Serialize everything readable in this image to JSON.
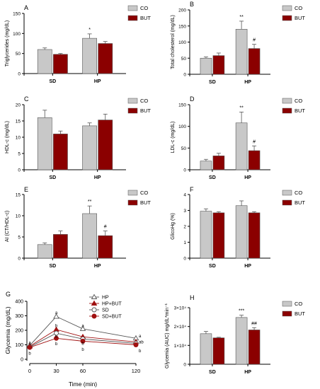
{
  "colors": {
    "co": "#c8c8c8",
    "but": "#8b0000",
    "axis": "#000000"
  },
  "legend_labels": {
    "co": "CO",
    "but": "BUT"
  },
  "chart_data": [
    {
      "panel": "A",
      "type": "bar",
      "ylabel": "Triglycerides (mg/dL)",
      "categories": [
        "SD",
        "HP"
      ],
      "ylim": [
        0,
        150
      ],
      "yticks": [
        0,
        50,
        100,
        150
      ],
      "series": [
        {
          "name": "CO",
          "values": [
            60,
            88
          ],
          "errors": [
            4,
            11
          ]
        },
        {
          "name": "BUT",
          "values": [
            48,
            75
          ],
          "errors": [
            2,
            5
          ]
        }
      ],
      "annotations": [
        {
          "category": "HP",
          "series": "CO",
          "text": "*"
        }
      ]
    },
    {
      "panel": "B",
      "type": "bar",
      "ylabel": "Total cholesterol (mg/dL)",
      "categories": [
        "SD",
        "HP"
      ],
      "ylim": [
        0,
        200
      ],
      "yticks": [
        0,
        50,
        100,
        150,
        200
      ],
      "series": [
        {
          "name": "CO",
          "values": [
            50,
            140
          ],
          "errors": [
            4,
            25
          ]
        },
        {
          "name": "BUT",
          "values": [
            58,
            80
          ],
          "errors": [
            8,
            13
          ]
        }
      ],
      "annotations": [
        {
          "category": "HP",
          "series": "CO",
          "text": "**"
        },
        {
          "category": "HP",
          "series": "BUT",
          "text": "#"
        }
      ]
    },
    {
      "panel": "C",
      "type": "bar",
      "ylabel": "HDL-c (mg/dL)",
      "categories": [
        "SD",
        "HP"
      ],
      "ylim": [
        0,
        20
      ],
      "yticks": [
        0,
        5,
        10,
        15,
        20
      ],
      "series": [
        {
          "name": "CO",
          "values": [
            16,
            13.5
          ],
          "errors": [
            2.3,
            0.9
          ]
        },
        {
          "name": "BUT",
          "values": [
            11,
            15.3
          ],
          "errors": [
            0.9,
            1.8
          ]
        }
      ],
      "annotations": []
    },
    {
      "panel": "D",
      "type": "bar",
      "ylabel": "LDL-c (mg/dL)",
      "categories": [
        "SD",
        "HP"
      ],
      "ylim": [
        0,
        150
      ],
      "yticks": [
        0,
        50,
        100,
        150
      ],
      "series": [
        {
          "name": "CO",
          "values": [
            20,
            108
          ],
          "errors": [
            4,
            25
          ]
        },
        {
          "name": "BUT",
          "values": [
            32,
            44
          ],
          "errors": [
            6,
            11
          ]
        }
      ],
      "annotations": [
        {
          "category": "HP",
          "series": "CO",
          "text": "**"
        },
        {
          "category": "HP",
          "series": "BUT",
          "text": "#"
        }
      ]
    },
    {
      "panel": "E",
      "type": "bar",
      "ylabel": "AI (CT/HDL-c)",
      "categories": [
        "SD",
        "HP"
      ],
      "ylim": [
        0,
        15
      ],
      "yticks": [
        0,
        5,
        10,
        15
      ],
      "series": [
        {
          "name": "CO",
          "values": [
            3.2,
            10.5
          ],
          "errors": [
            0.4,
            1.8
          ]
        },
        {
          "name": "BUT",
          "values": [
            5.6,
            5.3
          ],
          "errors": [
            0.8,
            1.1
          ]
        }
      ],
      "annotations": [
        {
          "category": "HP",
          "series": "CO",
          "text": "**"
        },
        {
          "category": "HP",
          "series": "BUT",
          "text": "#"
        }
      ]
    },
    {
      "panel": "F",
      "type": "bar",
      "ylabel": "GlicoHg (%)",
      "categories": [
        "SD",
        "HP"
      ],
      "ylim": [
        0,
        4
      ],
      "yticks": [
        0,
        1,
        2,
        3,
        4
      ],
      "series": [
        {
          "name": "CO",
          "values": [
            2.95,
            3.3
          ],
          "errors": [
            0.15,
            0.3
          ]
        },
        {
          "name": "BUT",
          "values": [
            2.85,
            2.85
          ],
          "errors": [
            0.07,
            0.07
          ]
        }
      ],
      "annotations": []
    },
    {
      "panel": "G",
      "type": "line",
      "xlabel": "Time (min)",
      "ylabel": "Glycemia (mg/dL)",
      "x": [
        0,
        30,
        60,
        120
      ],
      "xlim": [
        0,
        120
      ],
      "ylim": [
        0,
        400
      ],
      "yticks": [
        0,
        100,
        200,
        300,
        400
      ],
      "series": [
        {
          "name": "HP",
          "marker": "triangle-open",
          "color": "#555555",
          "values": [
            95,
            295,
            210,
            145
          ]
        },
        {
          "name": "HP+BUT",
          "marker": "triangle-filled",
          "color": "#a01010",
          "values": [
            90,
            205,
            155,
            120
          ]
        },
        {
          "name": "SD",
          "marker": "circle-open",
          "color": "#555555",
          "values": [
            85,
            180,
            140,
            110
          ]
        },
        {
          "name": "SD+BUT",
          "marker": "circle-filled",
          "color": "#a01010",
          "values": [
            82,
            145,
            125,
            100
          ]
        }
      ],
      "letters": [
        {
          "x": 0,
          "y": 118,
          "text": "a"
        },
        {
          "x": 0,
          "y": 45,
          "text": "b"
        },
        {
          "x": 30,
          "y": 325,
          "text": "a"
        },
        {
          "x": 30,
          "y": 235,
          "text": "b"
        },
        {
          "x": 30,
          "y": 162,
          "text": "b"
        },
        {
          "x": 30,
          "y": 110,
          "text": "b"
        },
        {
          "x": 60,
          "y": 235,
          "text": "a"
        },
        {
          "x": 60,
          "y": 112,
          "text": "b"
        },
        {
          "x": 60,
          "y": 70,
          "text": "b"
        },
        {
          "x": 120,
          "y": 163,
          "text": "a"
        },
        {
          "x": 120,
          "y": 122,
          "text": "ab"
        },
        {
          "x": 120,
          "y": 62,
          "text": "b"
        }
      ]
    },
    {
      "panel": "H",
      "type": "bar",
      "ylabel": "Glycemia (AUC) mg/dL*min⁻¹",
      "categories": [
        "SD",
        "HP"
      ],
      "ylim": [
        0,
        30000
      ],
      "ytick_values": [
        0,
        10000,
        20000,
        30000
      ],
      "yticks": [
        "0",
        "1×10⁴",
        "2×10⁴",
        "3×10⁴"
      ],
      "series": [
        {
          "name": "CO",
          "values": [
            16200,
            24800
          ],
          "errors": [
            1200,
            1200
          ]
        },
        {
          "name": "BUT",
          "values": [
            14000,
            18200
          ],
          "errors": [
            300,
            1200
          ]
        }
      ],
      "annotations": [
        {
          "category": "HP",
          "series": "CO",
          "text": "***"
        },
        {
          "category": "HP",
          "series": "BUT",
          "text": "##"
        }
      ]
    }
  ]
}
